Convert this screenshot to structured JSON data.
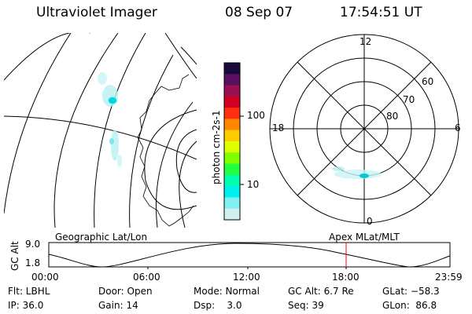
{
  "header": {
    "instrument": "Ultraviolet Imager",
    "date": "08 Sep 07",
    "time": "17:54:51 UT"
  },
  "colorbar": {
    "label": "photon cm-2s-1",
    "ticks": [
      "100",
      "10"
    ],
    "colors": [
      "#1a0a3a",
      "#5a1060",
      "#9a1050",
      "#d00020",
      "#ff3010",
      "#ff8800",
      "#ffcc00",
      "#e0ff00",
      "#80ff00",
      "#20ff40",
      "#00ffb0",
      "#00f0f0",
      "#80f0f0",
      "#d0f0f0"
    ]
  },
  "polar_plot": {
    "labels": {
      "top": "12",
      "left": "18",
      "right": "6",
      "bottom": "0"
    },
    "lat_labels": [
      "60",
      "70",
      "80"
    ]
  },
  "timeline": {
    "axis_label": "GC Alt",
    "y_ticks": [
      "9.0",
      "1.8"
    ],
    "left_title": "Geographic Lat/Lon",
    "right_title": "Apex MLat/MLT",
    "x_ticks": [
      "00:00",
      "06:00",
      "12:00",
      "18:00",
      "23:59"
    ],
    "current_marker_color": "#ff0000"
  },
  "info": {
    "filter": "Flt: LBHL",
    "ip": "IP: 36.0",
    "door": "Door: Open",
    "gain": "Gain: 14",
    "mode": "Mode: Normal",
    "dsp": "Dsp:    3.0",
    "gc_alt": "GC Alt: 6.7 Re",
    "seq": "Seq: 39",
    "glat": "GLat: −58.3",
    "glon": "GLon:  86.8"
  }
}
